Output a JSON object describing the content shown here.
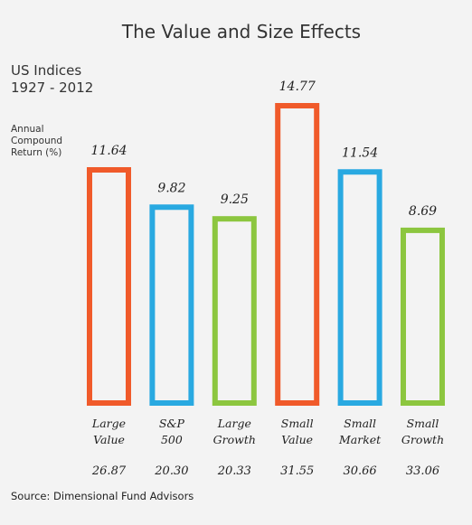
{
  "chart_data": {
    "type": "bar",
    "title": "The Value and Size Effects",
    "subtitle_lines": [
      "US Indices",
      "1927 - 2012"
    ],
    "ylabel_lines": [
      "Annual",
      "Compound",
      "Return (%)"
    ],
    "categories": [
      [
        "Large",
        "Value"
      ],
      [
        "S&P",
        "500"
      ],
      [
        "Large",
        "Growth"
      ],
      [
        "Small",
        "Value"
      ],
      [
        "Small",
        "Market"
      ],
      [
        "Small",
        "Growth"
      ]
    ],
    "values": [
      11.64,
      9.82,
      9.25,
      14.77,
      11.54,
      8.69
    ],
    "value_labels": [
      "11.64",
      "9.82",
      "9.25",
      "14.77",
      "11.54",
      "8.69"
    ],
    "secondary_values": [
      "26.87",
      "20.30",
      "20.33",
      "31.55",
      "30.66",
      "33.06"
    ],
    "colors": [
      "#f05a2a",
      "#29a9e1",
      "#8cc63f",
      "#f05a2a",
      "#29a9e1",
      "#8cc63f"
    ],
    "ylim": [
      0,
      14.77
    ],
    "grid": false,
    "legend": "none"
  },
  "source": "Source:  Dimensional Fund Advisors"
}
